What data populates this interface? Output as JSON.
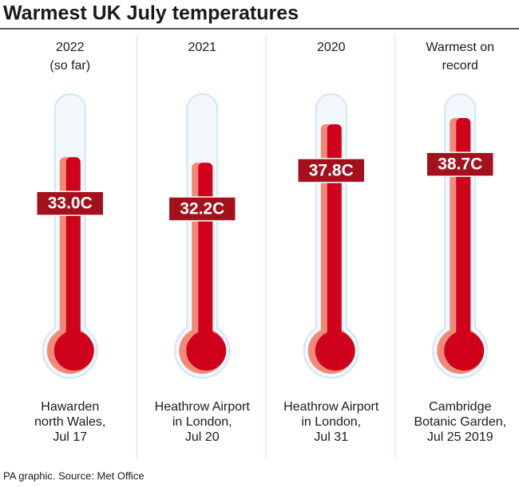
{
  "chart_data": {
    "type": "thermometer",
    "title": "Warmest UK July temperatures",
    "categories": [
      [
        "2022",
        "(so far)"
      ],
      [
        "2021"
      ],
      [
        "2020"
      ],
      [
        "Warmest on",
        "record"
      ]
    ],
    "values": [
      33.0,
      32.2,
      37.8,
      38.7
    ],
    "value_labels": [
      "33.0C",
      "32.2C",
      "37.8C",
      "38.7C"
    ],
    "locations": [
      [
        "Hawarden",
        "north Wales,",
        "Jul 17"
      ],
      [
        "Heathrow Airport",
        "in London,",
        "Jul 20"
      ],
      [
        "Heathrow Airport",
        "in London,",
        "Jul 31"
      ],
      [
        "Cambridge",
        "Botanic Garden,",
        "Jul 25 2019"
      ]
    ],
    "color": "#d0021b",
    "source": "PA graphic. Source: Met Office"
  }
}
